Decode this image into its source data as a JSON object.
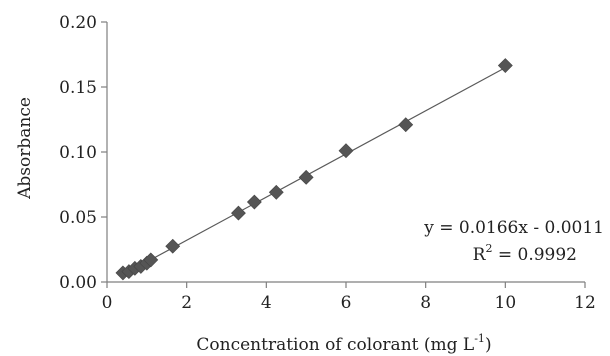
{
  "chart_data": {
    "type": "scatter",
    "xlabel_main": "Concentration of colorant (mg L",
    "xlabel_sup": "-1",
    "xlabel_close": ")",
    "ylabel": "Absorbance",
    "xlim": [
      0,
      12
    ],
    "ylim": [
      0,
      0.2
    ],
    "x_ticks": [
      "0",
      "2",
      "4",
      "6",
      "8",
      "10",
      "12"
    ],
    "y_ticks": [
      "0.00",
      "0.05",
      "0.10",
      "0.15",
      "0.20"
    ],
    "grid": false,
    "marker": "diamond",
    "color": "#555555",
    "points": [
      {
        "x": 0.4,
        "y": 0.007
      },
      {
        "x": 0.55,
        "y": 0.008
      },
      {
        "x": 0.7,
        "y": 0.0105
      },
      {
        "x": 0.85,
        "y": 0.012
      },
      {
        "x": 1.0,
        "y": 0.0145
      },
      {
        "x": 1.1,
        "y": 0.017
      },
      {
        "x": 1.65,
        "y": 0.0275
      },
      {
        "x": 3.3,
        "y": 0.053
      },
      {
        "x": 3.7,
        "y": 0.0615
      },
      {
        "x": 4.25,
        "y": 0.069
      },
      {
        "x": 5.0,
        "y": 0.0805
      },
      {
        "x": 6.0,
        "y": 0.101
      },
      {
        "x": 7.5,
        "y": 0.121
      },
      {
        "x": 10.0,
        "y": 0.1665
      }
    ],
    "trendline": {
      "slope": 0.0166,
      "intercept": -0.0011,
      "x_range": [
        0.4,
        10.0
      ]
    },
    "annotations": {
      "equation": "y = 0.0166x - 0.0011",
      "r2_label": "R",
      "r2_sup": "2",
      "r2_value": " = 0.9992"
    }
  }
}
